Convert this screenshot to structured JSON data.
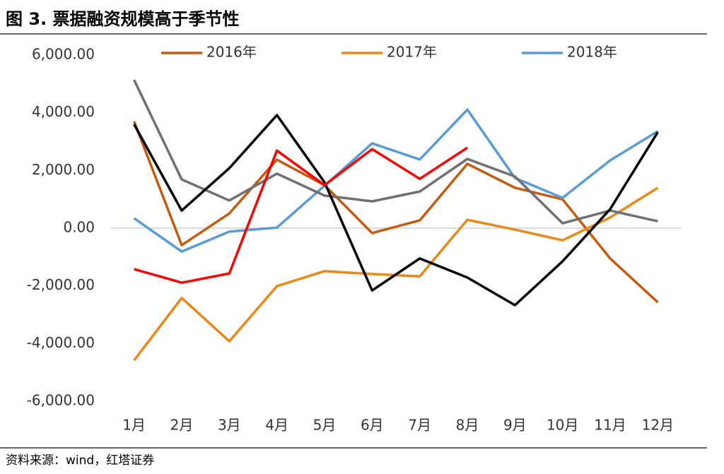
{
  "title": "图 3. 票据融资规模高于季节性",
  "source": "资料来源：wind，红塔证券",
  "chart_data": {
    "type": "line",
    "categories": [
      "1月",
      "2月",
      "3月",
      "4月",
      "5月",
      "6月",
      "7月",
      "8月",
      "9月",
      "10月",
      "11月",
      "12月"
    ],
    "series": [
      {
        "name": "2016年",
        "color": "#c55a11",
        "values": [
          3700,
          -590,
          510,
          2375,
          1490,
          -170,
          270,
          2230,
          1400,
          1000,
          -1050,
          -2570
        ]
      },
      {
        "name": "2017年",
        "color": "#e8891c",
        "values": [
          -4580,
          -2420,
          -3920,
          -2010,
          -1490,
          -1590,
          -1670,
          290,
          -50,
          -420,
          370,
          1400
        ]
      },
      {
        "name": "2018年",
        "color": "#5b9bd5",
        "values": [
          340,
          -810,
          -120,
          20,
          1470,
          2940,
          2380,
          4110,
          1740,
          1050,
          2350,
          3360
        ]
      },
      {
        "color": "#707070",
        "values": [
          5140,
          1690,
          960,
          1890,
          1130,
          930,
          1270,
          2400,
          1790,
          170,
          610,
          240
        ]
      },
      {
        "color": "#000000",
        "values": [
          3600,
          610,
          2080,
          3920,
          1590,
          -2160,
          -1050,
          -1710,
          -2670,
          -1150,
          660,
          3330
        ]
      },
      {
        "color": "#ff0000",
        "values": [
          -1420,
          -1890,
          -1570,
          2690,
          1490,
          2740,
          1710,
          2790,
          null,
          null,
          null,
          null
        ]
      }
    ],
    "ylim": [
      -6000,
      6000
    ],
    "yticks": [
      {
        "value": -6000,
        "label": "-6,000.00"
      },
      {
        "value": -4000,
        "label": "-4,000.00"
      },
      {
        "value": -2000,
        "label": "-2,000.00"
      },
      {
        "value": 0,
        "label": "0.00"
      },
      {
        "value": 2000,
        "label": "2,000.00"
      },
      {
        "value": 4000,
        "label": "4,000.00"
      },
      {
        "value": 6000,
        "label": "6,000.00"
      }
    ],
    "legend": "top"
  }
}
